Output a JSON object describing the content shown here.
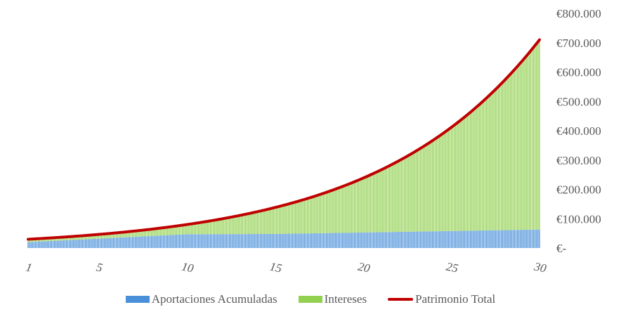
{
  "chart_data": {
    "type": "bar",
    "stacked": true,
    "x_tick_labels": [
      "1",
      "5",
      "10",
      "15",
      "20",
      "25",
      "30"
    ],
    "y_tick_labels": [
      "€-",
      "€100.000",
      "€200.000",
      "€300.000",
      "€400.000",
      "€500.000",
      "€600.000",
      "€700.000",
      "€800.000"
    ],
    "ylim": [
      0,
      800000
    ],
    "ytick_step": 100000,
    "x_range": [
      1,
      30
    ],
    "periods_per_year": 12,
    "annual_return": 0.1,
    "x": [
      1,
      5,
      10,
      15,
      20,
      25,
      30
    ],
    "series": [
      {
        "name": "Aportaciones Acumuladas",
        "kind": "bar",
        "color": "#4a90d9",
        "values": [
          20000,
          32000,
          47000,
          48000,
          53000,
          58000,
          63000
        ]
      },
      {
        "name": "Intereses",
        "kind": "bar",
        "color": "#92d050",
        "values": [
          10000,
          23000,
          53000,
          117000,
          220000,
          372000,
          647000
        ]
      },
      {
        "name": "Patrimonio Total",
        "kind": "line",
        "color": "#c00000",
        "values": [
          30000,
          55000,
          100000,
          165000,
          273000,
          430000,
          710000
        ]
      }
    ],
    "legend_position": "bottom",
    "grid": false
  }
}
